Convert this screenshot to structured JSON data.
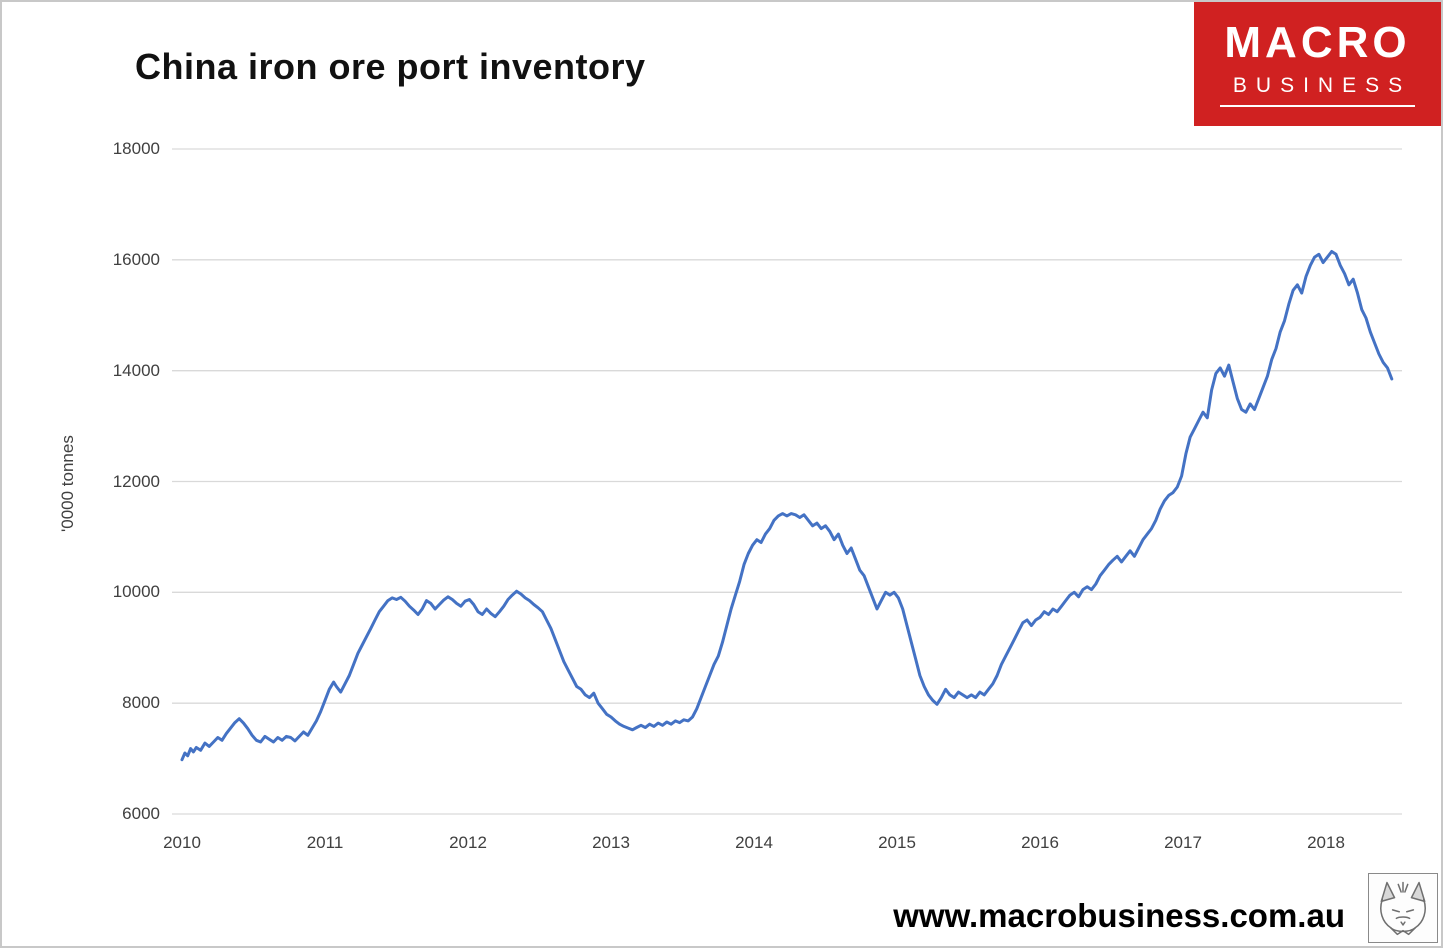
{
  "header": {
    "title": "China iron ore port inventory"
  },
  "logo": {
    "line1": "MACRO",
    "line2": "BUSINESS",
    "bg_color": "#d02121",
    "text_color": "#ffffff"
  },
  "footer": {
    "website": "www.macrobusiness.com.au"
  },
  "wolf_logo": {
    "name": "wolf-sketch-logo"
  },
  "chart_data": {
    "type": "line",
    "title": "China iron ore port inventory",
    "xlabel": "",
    "ylabel": "'0000 tonnes",
    "ylim": [
      6000,
      18000
    ],
    "xlim": [
      2010,
      2018.6
    ],
    "grid": "horizontal",
    "grid_color": "#d9d9d9",
    "legend": "none",
    "line_color": "#4472c4",
    "yticks": [
      18000,
      16000,
      14000,
      12000,
      10000,
      8000,
      6000
    ],
    "ytick_labels": [
      "18000",
      "16000",
      "14000",
      "12000",
      "10000",
      "8000",
      "6000"
    ],
    "xticks": [
      2010,
      2011,
      2012,
      2013,
      2014,
      2015,
      2016,
      2017,
      2018
    ],
    "xtick_labels": [
      "2010",
      "2011",
      "2012",
      "2013",
      "2014",
      "2015",
      "2016",
      "2017",
      "2018"
    ],
    "series": [
      {
        "name": "China iron ore port inventory ('0000 tonnes)",
        "points": [
          [
            2010.0,
            6980
          ],
          [
            2010.02,
            7100
          ],
          [
            2010.04,
            7050
          ],
          [
            2010.06,
            7180
          ],
          [
            2010.08,
            7120
          ],
          [
            2010.1,
            7200
          ],
          [
            2010.13,
            7150
          ],
          [
            2010.16,
            7280
          ],
          [
            2010.19,
            7220
          ],
          [
            2010.22,
            7300
          ],
          [
            2010.25,
            7380
          ],
          [
            2010.28,
            7330
          ],
          [
            2010.31,
            7450
          ],
          [
            2010.34,
            7550
          ],
          [
            2010.37,
            7650
          ],
          [
            2010.4,
            7720
          ],
          [
            2010.43,
            7640
          ],
          [
            2010.46,
            7540
          ],
          [
            2010.49,
            7420
          ],
          [
            2010.52,
            7330
          ],
          [
            2010.55,
            7300
          ],
          [
            2010.58,
            7400
          ],
          [
            2010.61,
            7350
          ],
          [
            2010.64,
            7300
          ],
          [
            2010.67,
            7380
          ],
          [
            2010.7,
            7330
          ],
          [
            2010.73,
            7400
          ],
          [
            2010.76,
            7380
          ],
          [
            2010.79,
            7320
          ],
          [
            2010.82,
            7400
          ],
          [
            2010.85,
            7480
          ],
          [
            2010.88,
            7420
          ],
          [
            2010.91,
            7550
          ],
          [
            2010.94,
            7680
          ],
          [
            2010.97,
            7850
          ],
          [
            2011.0,
            8050
          ],
          [
            2011.03,
            8250
          ],
          [
            2011.06,
            8380
          ],
          [
            2011.08,
            8300
          ],
          [
            2011.11,
            8200
          ],
          [
            2011.14,
            8350
          ],
          [
            2011.17,
            8500
          ],
          [
            2011.2,
            8700
          ],
          [
            2011.23,
            8900
          ],
          [
            2011.26,
            9050
          ],
          [
            2011.29,
            9200
          ],
          [
            2011.32,
            9350
          ],
          [
            2011.35,
            9500
          ],
          [
            2011.38,
            9650
          ],
          [
            2011.41,
            9750
          ],
          [
            2011.44,
            9850
          ],
          [
            2011.47,
            9900
          ],
          [
            2011.5,
            9870
          ],
          [
            2011.53,
            9910
          ],
          [
            2011.56,
            9840
          ],
          [
            2011.59,
            9750
          ],
          [
            2011.62,
            9680
          ],
          [
            2011.65,
            9600
          ],
          [
            2011.68,
            9700
          ],
          [
            2011.71,
            9850
          ],
          [
            2011.74,
            9800
          ],
          [
            2011.77,
            9700
          ],
          [
            2011.8,
            9780
          ],
          [
            2011.83,
            9860
          ],
          [
            2011.86,
            9920
          ],
          [
            2011.89,
            9870
          ],
          [
            2011.92,
            9800
          ],
          [
            2011.95,
            9750
          ],
          [
            2011.98,
            9840
          ],
          [
            2012.01,
            9870
          ],
          [
            2012.04,
            9780
          ],
          [
            2012.07,
            9650
          ],
          [
            2012.1,
            9600
          ],
          [
            2012.13,
            9700
          ],
          [
            2012.16,
            9620
          ],
          [
            2012.19,
            9560
          ],
          [
            2012.22,
            9650
          ],
          [
            2012.25,
            9750
          ],
          [
            2012.28,
            9870
          ],
          [
            2012.31,
            9950
          ],
          [
            2012.34,
            10020
          ],
          [
            2012.37,
            9970
          ],
          [
            2012.4,
            9900
          ],
          [
            2012.43,
            9850
          ],
          [
            2012.46,
            9780
          ],
          [
            2012.49,
            9720
          ],
          [
            2012.52,
            9650
          ],
          [
            2012.55,
            9500
          ],
          [
            2012.58,
            9350
          ],
          [
            2012.61,
            9150
          ],
          [
            2012.64,
            8950
          ],
          [
            2012.67,
            8750
          ],
          [
            2012.7,
            8600
          ],
          [
            2012.73,
            8450
          ],
          [
            2012.76,
            8300
          ],
          [
            2012.79,
            8250
          ],
          [
            2012.82,
            8150
          ],
          [
            2012.85,
            8100
          ],
          [
            2012.88,
            8180
          ],
          [
            2012.91,
            8000
          ],
          [
            2012.94,
            7900
          ],
          [
            2012.97,
            7800
          ],
          [
            2013.0,
            7750
          ],
          [
            2013.03,
            7680
          ],
          [
            2013.06,
            7620
          ],
          [
            2013.09,
            7580
          ],
          [
            2013.12,
            7550
          ],
          [
            2013.15,
            7520
          ],
          [
            2013.18,
            7560
          ],
          [
            2013.21,
            7600
          ],
          [
            2013.24,
            7560
          ],
          [
            2013.27,
            7620
          ],
          [
            2013.3,
            7580
          ],
          [
            2013.33,
            7640
          ],
          [
            2013.36,
            7600
          ],
          [
            2013.39,
            7660
          ],
          [
            2013.42,
            7620
          ],
          [
            2013.45,
            7680
          ],
          [
            2013.48,
            7650
          ],
          [
            2013.51,
            7700
          ],
          [
            2013.54,
            7680
          ],
          [
            2013.57,
            7750
          ],
          [
            2013.6,
            7900
          ],
          [
            2013.63,
            8100
          ],
          [
            2013.66,
            8300
          ],
          [
            2013.69,
            8500
          ],
          [
            2013.72,
            8700
          ],
          [
            2013.75,
            8850
          ],
          [
            2013.78,
            9100
          ],
          [
            2013.81,
            9400
          ],
          [
            2013.84,
            9700
          ],
          [
            2013.87,
            9950
          ],
          [
            2013.9,
            10200
          ],
          [
            2013.93,
            10500
          ],
          [
            2013.96,
            10700
          ],
          [
            2013.99,
            10850
          ],
          [
            2014.02,
            10950
          ],
          [
            2014.05,
            10900
          ],
          [
            2014.08,
            11050
          ],
          [
            2014.11,
            11150
          ],
          [
            2014.14,
            11300
          ],
          [
            2014.17,
            11380
          ],
          [
            2014.2,
            11420
          ],
          [
            2014.23,
            11380
          ],
          [
            2014.26,
            11420
          ],
          [
            2014.29,
            11400
          ],
          [
            2014.32,
            11350
          ],
          [
            2014.35,
            11400
          ],
          [
            2014.38,
            11300
          ],
          [
            2014.41,
            11200
          ],
          [
            2014.44,
            11250
          ],
          [
            2014.47,
            11150
          ],
          [
            2014.5,
            11200
          ],
          [
            2014.53,
            11100
          ],
          [
            2014.56,
            10950
          ],
          [
            2014.59,
            11050
          ],
          [
            2014.62,
            10850
          ],
          [
            2014.65,
            10700
          ],
          [
            2014.68,
            10800
          ],
          [
            2014.71,
            10600
          ],
          [
            2014.74,
            10400
          ],
          [
            2014.77,
            10300
          ],
          [
            2014.8,
            10100
          ],
          [
            2014.83,
            9900
          ],
          [
            2014.86,
            9700
          ],
          [
            2014.89,
            9850
          ],
          [
            2014.92,
            10000
          ],
          [
            2014.95,
            9950
          ],
          [
            2014.98,
            10000
          ],
          [
            2015.01,
            9900
          ],
          [
            2015.04,
            9700
          ],
          [
            2015.07,
            9400
          ],
          [
            2015.1,
            9100
          ],
          [
            2015.13,
            8800
          ],
          [
            2015.16,
            8500
          ],
          [
            2015.19,
            8300
          ],
          [
            2015.22,
            8150
          ],
          [
            2015.25,
            8050
          ],
          [
            2015.28,
            7980
          ],
          [
            2015.31,
            8100
          ],
          [
            2015.34,
            8250
          ],
          [
            2015.37,
            8150
          ],
          [
            2015.4,
            8100
          ],
          [
            2015.43,
            8200
          ],
          [
            2015.46,
            8150
          ],
          [
            2015.49,
            8100
          ],
          [
            2015.52,
            8150
          ],
          [
            2015.55,
            8100
          ],
          [
            2015.58,
            8200
          ],
          [
            2015.61,
            8150
          ],
          [
            2015.64,
            8250
          ],
          [
            2015.67,
            8350
          ],
          [
            2015.7,
            8500
          ],
          [
            2015.73,
            8700
          ],
          [
            2015.76,
            8850
          ],
          [
            2015.79,
            9000
          ],
          [
            2015.82,
            9150
          ],
          [
            2015.85,
            9300
          ],
          [
            2015.88,
            9450
          ],
          [
            2015.91,
            9500
          ],
          [
            2015.94,
            9400
          ],
          [
            2015.97,
            9500
          ],
          [
            2016.0,
            9550
          ],
          [
            2016.03,
            9650
          ],
          [
            2016.06,
            9600
          ],
          [
            2016.09,
            9700
          ],
          [
            2016.12,
            9650
          ],
          [
            2016.15,
            9750
          ],
          [
            2016.18,
            9850
          ],
          [
            2016.21,
            9950
          ],
          [
            2016.24,
            10000
          ],
          [
            2016.27,
            9920
          ],
          [
            2016.3,
            10050
          ],
          [
            2016.33,
            10100
          ],
          [
            2016.36,
            10050
          ],
          [
            2016.39,
            10150
          ],
          [
            2016.42,
            10300
          ],
          [
            2016.45,
            10400
          ],
          [
            2016.48,
            10500
          ],
          [
            2016.51,
            10580
          ],
          [
            2016.54,
            10650
          ],
          [
            2016.57,
            10550
          ],
          [
            2016.6,
            10650
          ],
          [
            2016.63,
            10750
          ],
          [
            2016.66,
            10650
          ],
          [
            2016.69,
            10800
          ],
          [
            2016.72,
            10950
          ],
          [
            2016.75,
            11050
          ],
          [
            2016.78,
            11150
          ],
          [
            2016.81,
            11300
          ],
          [
            2016.84,
            11500
          ],
          [
            2016.87,
            11650
          ],
          [
            2016.9,
            11750
          ],
          [
            2016.93,
            11800
          ],
          [
            2016.96,
            11900
          ],
          [
            2016.99,
            12100
          ],
          [
            2017.02,
            12500
          ],
          [
            2017.05,
            12800
          ],
          [
            2017.08,
            12950
          ],
          [
            2017.11,
            13100
          ],
          [
            2017.14,
            13250
          ],
          [
            2017.17,
            13150
          ],
          [
            2017.2,
            13650
          ],
          [
            2017.23,
            13950
          ],
          [
            2017.26,
            14050
          ],
          [
            2017.29,
            13900
          ],
          [
            2017.32,
            14100
          ],
          [
            2017.35,
            13800
          ],
          [
            2017.38,
            13500
          ],
          [
            2017.41,
            13300
          ],
          [
            2017.44,
            13250
          ],
          [
            2017.47,
            13400
          ],
          [
            2017.5,
            13300
          ],
          [
            2017.53,
            13500
          ],
          [
            2017.56,
            13700
          ],
          [
            2017.59,
            13900
          ],
          [
            2017.62,
            14200
          ],
          [
            2017.65,
            14400
          ],
          [
            2017.68,
            14700
          ],
          [
            2017.71,
            14900
          ],
          [
            2017.74,
            15200
          ],
          [
            2017.77,
            15450
          ],
          [
            2017.8,
            15550
          ],
          [
            2017.83,
            15400
          ],
          [
            2017.86,
            15700
          ],
          [
            2017.89,
            15900
          ],
          [
            2017.92,
            16050
          ],
          [
            2017.95,
            16100
          ],
          [
            2017.98,
            15950
          ],
          [
            2018.01,
            16050
          ],
          [
            2018.04,
            16150
          ],
          [
            2018.07,
            16100
          ],
          [
            2018.1,
            15900
          ],
          [
            2018.13,
            15750
          ],
          [
            2018.16,
            15550
          ],
          [
            2018.19,
            15650
          ],
          [
            2018.22,
            15400
          ],
          [
            2018.25,
            15100
          ],
          [
            2018.28,
            14950
          ],
          [
            2018.31,
            14700
          ],
          [
            2018.34,
            14500
          ],
          [
            2018.37,
            14300
          ],
          [
            2018.4,
            14150
          ],
          [
            2018.43,
            14050
          ],
          [
            2018.46,
            13850
          ]
        ]
      }
    ]
  }
}
